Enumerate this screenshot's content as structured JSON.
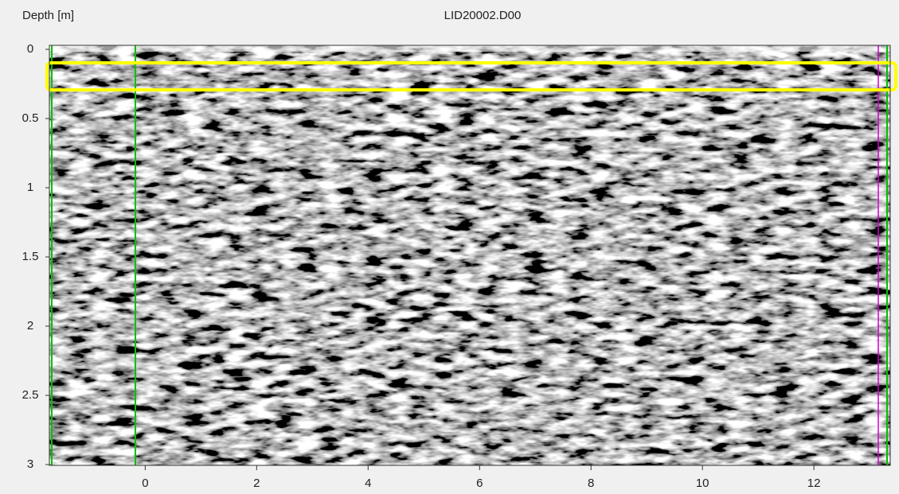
{
  "window": {
    "axis_label": "Depth [m]",
    "file_name": "LID20002.D00"
  },
  "radargram": {
    "xlim": [
      -1.72,
      13.37
    ],
    "ylim": [
      0,
      3
    ],
    "xticks": [
      0,
      2,
      4,
      6,
      8,
      10,
      12
    ],
    "yticks": [
      0,
      0.5,
      1,
      1.5,
      2,
      2.5,
      3
    ]
  }
}
